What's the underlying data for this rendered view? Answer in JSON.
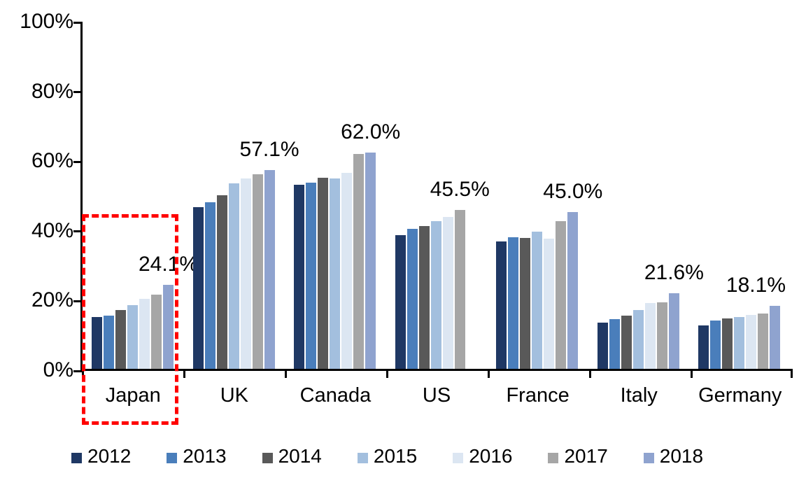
{
  "chart_data": {
    "type": "bar",
    "title": "",
    "categories": [
      "Japan",
      "UK",
      "Canada",
      "US",
      "France",
      "Italy",
      "Germany"
    ],
    "series": [
      {
        "name": "2012",
        "color": "#1F3864",
        "values": [
          14.9,
          46.3,
          52.9,
          38.3,
          36.5,
          13.2,
          12.5
        ]
      },
      {
        "name": "2013",
        "color": "#4A7EBB",
        "values": [
          15.2,
          47.8,
          53.4,
          40.2,
          37.7,
          14.2,
          13.9
        ]
      },
      {
        "name": "2014",
        "color": "#595959",
        "values": [
          16.8,
          49.8,
          54.8,
          41.0,
          37.6,
          15.3,
          14.5
        ]
      },
      {
        "name": "2015",
        "color": "#A3BFDE",
        "values": [
          18.2,
          53.2,
          54.6,
          42.3,
          39.3,
          16.9,
          14.9
        ]
      },
      {
        "name": "2016",
        "color": "#DCE6F2",
        "values": [
          20.1,
          54.7,
          56.2,
          43.5,
          37.3,
          18.9,
          15.5
        ]
      },
      {
        "name": "2017",
        "color": "#A6A6A6",
        "values": [
          21.2,
          55.8,
          61.6,
          45.5,
          42.3,
          19.1,
          15.9
        ]
      },
      {
        "name": "2018",
        "color": "#8FA3CF",
        "values": [
          24.1,
          57.1,
          62.0,
          null,
          45.0,
          21.6,
          18.1
        ]
      }
    ],
    "data_labels": [
      "24.1%",
      "57.1%",
      "62.0%",
      "45.5%",
      "45.0%",
      "21.6%",
      "18.1%"
    ],
    "y_axis": {
      "min": 0,
      "max": 100,
      "tick_values": [
        0,
        20,
        40,
        60,
        80,
        100
      ],
      "tick_labels": [
        "0%",
        "20%",
        "40%",
        "60%",
        "80%",
        "100%"
      ]
    },
    "legend": {
      "position": "bottom",
      "entries": [
        "2012",
        "2013",
        "2014",
        "2015",
        "2016",
        "2017",
        "2018"
      ]
    },
    "annotation": {
      "type": "dashed-rectangle",
      "target_category": "Japan",
      "color": "#FF0000"
    },
    "grid": false
  }
}
